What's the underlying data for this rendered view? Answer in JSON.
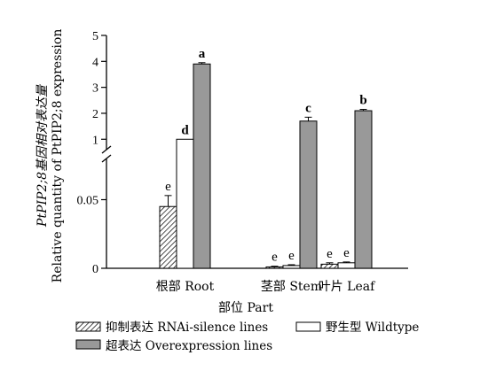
{
  "chart_data": {
    "type": "bar",
    "ylabel_lines": [
      "PtPIP2;8基因相对表达量",
      "Relative quantity of PtPIP2;8 expression"
    ],
    "xlabel": "部位 Part",
    "categories": [
      "根部 Root",
      "茎部 Stem",
      "叶片 Leaf"
    ],
    "y_axis_broken": true,
    "ylim_lower": [
      0,
      0.08
    ],
    "ylim_upper": [
      0.6,
      5
    ],
    "yticks_lower": [
      "0",
      "0.05"
    ],
    "yticks_upper": [
      "1",
      "2",
      "3",
      "4",
      "5"
    ],
    "series": [
      {
        "name": "抑制表达 RNAi-silence lines",
        "pattern": "hatch",
        "color": "#ffffff",
        "values": [
          0.045,
          0.001,
          0.003
        ],
        "errors": [
          0.008,
          0.0005,
          0.001
        ],
        "letters": [
          "e",
          "e",
          "e"
        ]
      },
      {
        "name": "野生型 Wildtype",
        "pattern": "solid",
        "color": "#ffffff",
        "values": [
          1.0,
          0.002,
          0.004
        ],
        "errors": [
          0.0,
          0.0006,
          0.0006
        ],
        "letters": [
          "d",
          "e",
          "e"
        ]
      },
      {
        "name": "超表达 Overexpression lines",
        "pattern": "solid",
        "color": "#999999",
        "values": [
          3.9,
          1.7,
          2.1
        ],
        "errors": [
          0.05,
          0.15,
          0.05
        ],
        "letters": [
          "a",
          "c",
          "b"
        ]
      }
    ],
    "bold_letters": [
      "d",
      "a",
      "c",
      "b"
    ],
    "legend_position": "bottom"
  }
}
